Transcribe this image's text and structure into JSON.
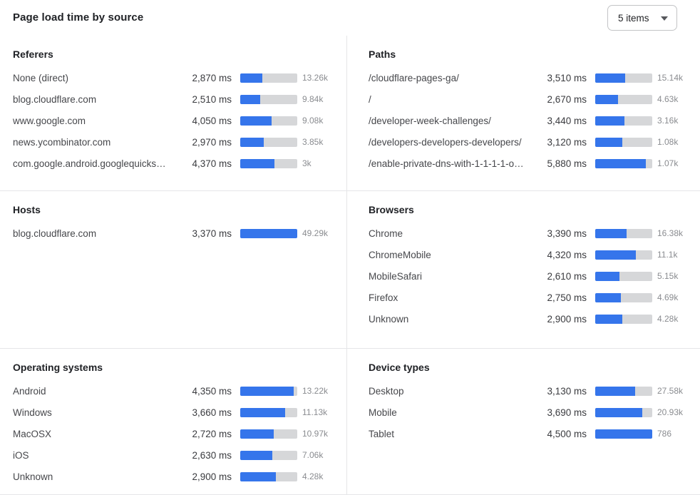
{
  "header": {
    "title": "Page load time by source",
    "dropdown": {
      "value": "5 items",
      "icon": "chevron-down"
    }
  },
  "colors": {
    "bar_fill": "#3575eb",
    "bar_track": "#d6d7d9",
    "divider": "#e5e6e8",
    "heading_text": "#202226",
    "count_text": "#8a8c90"
  },
  "chart_data": [
    {
      "type": "bar",
      "key": "referers",
      "title": "Referers",
      "unit": "ms",
      "bar_max": 7300,
      "categories": [
        "None (direct)",
        "blog.cloudflare.com",
        "www.google.com",
        "news.ycombinator.com",
        "com.google.android.googlequicksearc…"
      ],
      "values": [
        2870,
        2510,
        4050,
        2970,
        4370
      ],
      "rows": [
        {
          "label": "None (direct)",
          "ms": 2870,
          "ms_display": "2,870 ms",
          "count": "13.26k"
        },
        {
          "label": "blog.cloudflare.com",
          "ms": 2510,
          "ms_display": "2,510 ms",
          "count": "9.84k"
        },
        {
          "label": "www.google.com",
          "ms": 4050,
          "ms_display": "4,050 ms",
          "count": "9.08k"
        },
        {
          "label": "news.ycombinator.com",
          "ms": 2970,
          "ms_display": "2,970 ms",
          "count": "3.85k"
        },
        {
          "label": "com.google.android.googlequicksearc…",
          "ms": 4370,
          "ms_display": "4,370 ms",
          "count": "3k"
        }
      ]
    },
    {
      "type": "bar",
      "key": "paths",
      "title": "Paths",
      "unit": "ms",
      "bar_max": 6650,
      "categories": [
        "/cloudflare-pages-ga/",
        "/",
        "/developer-week-challenges/",
        "/developers-developers-developers/",
        "/enable-private-dns-with-1-1-1-1-on-…"
      ],
      "values": [
        3510,
        2670,
        3440,
        3120,
        5880
      ],
      "rows": [
        {
          "label": "/cloudflare-pages-ga/",
          "ms": 3510,
          "ms_display": "3,510 ms",
          "count": "15.14k"
        },
        {
          "label": "/",
          "ms": 2670,
          "ms_display": "2,670 ms",
          "count": "4.63k"
        },
        {
          "label": "/developer-week-challenges/",
          "ms": 3440,
          "ms_display": "3,440 ms",
          "count": "3.16k"
        },
        {
          "label": "/developers-developers-developers/",
          "ms": 3120,
          "ms_display": "3,120 ms",
          "count": "1.08k"
        },
        {
          "label": "/enable-private-dns-with-1-1-1-1-on-…",
          "ms": 5880,
          "ms_display": "5,880 ms",
          "count": "1.07k"
        }
      ]
    },
    {
      "type": "bar",
      "key": "hosts",
      "title": "Hosts",
      "unit": "ms",
      "bar_max": 3370,
      "categories": [
        "blog.cloudflare.com"
      ],
      "values": [
        3370
      ],
      "rows": [
        {
          "label": "blog.cloudflare.com",
          "ms": 3370,
          "ms_display": "3,370 ms",
          "count": "49.29k"
        }
      ]
    },
    {
      "type": "bar",
      "key": "browsers",
      "title": "Browsers",
      "unit": "ms",
      "bar_max": 6100,
      "categories": [
        "Chrome",
        "ChromeMobile",
        "MobileSafari",
        "Firefox",
        "Unknown"
      ],
      "values": [
        3390,
        4320,
        2610,
        2750,
        2900
      ],
      "rows": [
        {
          "label": "Chrome",
          "ms": 3390,
          "ms_display": "3,390 ms",
          "count": "16.38k"
        },
        {
          "label": "ChromeMobile",
          "ms": 4320,
          "ms_display": "4,320 ms",
          "count": "11.1k"
        },
        {
          "label": "MobileSafari",
          "ms": 2610,
          "ms_display": "2,610 ms",
          "count": "5.15k"
        },
        {
          "label": "Firefox",
          "ms": 2750,
          "ms_display": "2,750 ms",
          "count": "4.69k"
        },
        {
          "label": "Unknown",
          "ms": 2900,
          "ms_display": "2,900 ms",
          "count": "4.28k"
        }
      ]
    },
    {
      "type": "bar",
      "key": "operating-systems",
      "title": "Operating systems",
      "unit": "ms",
      "bar_max": 4650,
      "categories": [
        "Android",
        "Windows",
        "MacOSX",
        "iOS",
        "Unknown"
      ],
      "values": [
        4350,
        3660,
        2720,
        2630,
        2900
      ],
      "rows": [
        {
          "label": "Android",
          "ms": 4350,
          "ms_display": "4,350 ms",
          "count": "13.22k"
        },
        {
          "label": "Windows",
          "ms": 3660,
          "ms_display": "3,660 ms",
          "count": "11.13k"
        },
        {
          "label": "MacOSX",
          "ms": 2720,
          "ms_display": "2,720 ms",
          "count": "10.97k"
        },
        {
          "label": "iOS",
          "ms": 2630,
          "ms_display": "2,630 ms",
          "count": "7.06k"
        },
        {
          "label": "Unknown",
          "ms": 2900,
          "ms_display": "2,900 ms",
          "count": "4.28k"
        }
      ]
    },
    {
      "type": "bar",
      "key": "device-types",
      "title": "Device types",
      "unit": "ms",
      "bar_max": 4500,
      "categories": [
        "Desktop",
        "Mobile",
        "Tablet"
      ],
      "values": [
        3130,
        3690,
        4500
      ],
      "rows": [
        {
          "label": "Desktop",
          "ms": 3130,
          "ms_display": "3,130 ms",
          "count": "27.58k"
        },
        {
          "label": "Mobile",
          "ms": 3690,
          "ms_display": "3,690 ms",
          "count": "20.93k"
        },
        {
          "label": "Tablet",
          "ms": 4500,
          "ms_display": "4,500 ms",
          "count": "786"
        }
      ]
    }
  ]
}
